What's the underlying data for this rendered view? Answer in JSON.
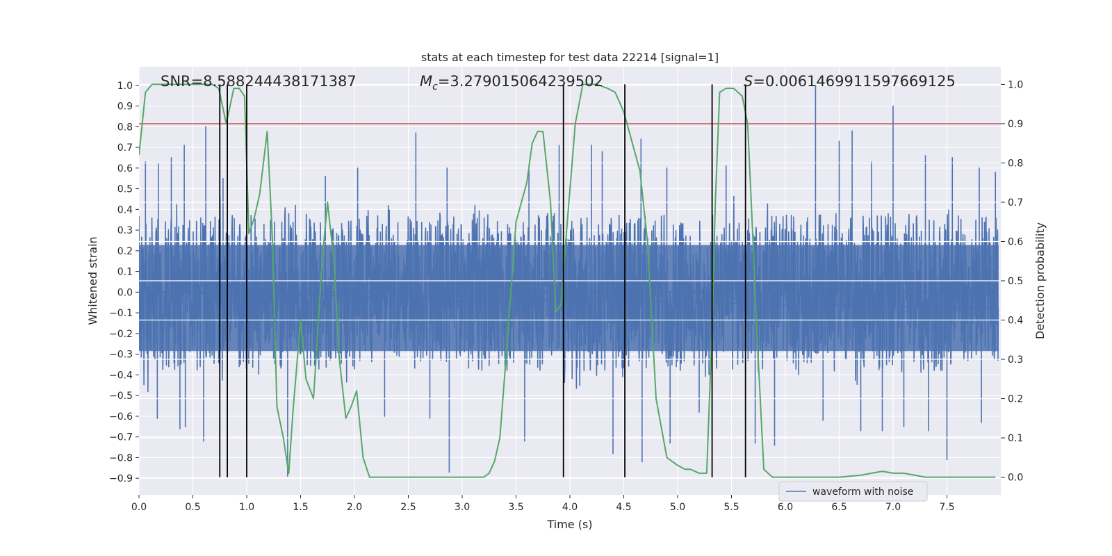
{
  "chart_data": {
    "type": "line",
    "title": "stats at each timestep for test data 22214 [signal=1]",
    "xlabel": "Time (s)",
    "ylabel": "Whitened strain",
    "y2label": "Detection probability",
    "xlim": [
      0.0,
      8.0
    ],
    "ylim": [
      -0.98,
      1.09
    ],
    "y2lim": [
      -0.045,
      1.045
    ],
    "xticks": [
      "0.0",
      "0.5",
      "1.0",
      "1.5",
      "2.0",
      "2.5",
      "3.0",
      "3.5",
      "4.0",
      "4.5",
      "5.0",
      "5.5",
      "6.0",
      "6.5",
      "7.0",
      "7.5"
    ],
    "yticks": [
      "1.0",
      "0.9",
      "0.8",
      "0.7",
      "0.6",
      "0.5",
      "0.4",
      "0.3",
      "0.2",
      "0.1",
      "0.0",
      "−0.1",
      "−0.2",
      "−0.3",
      "−0.4",
      "−0.5",
      "−0.6",
      "−0.7",
      "−0.8",
      "−0.9"
    ],
    "y2ticks": [
      "1.0",
      "0.9",
      "0.8",
      "0.7",
      "0.6",
      "0.5",
      "0.4",
      "0.3",
      "0.2",
      "0.1",
      "0.0"
    ],
    "grid": true,
    "legend": {
      "placement": "lower-right",
      "entries": [
        "waveform with noise"
      ]
    },
    "annotations": {
      "snr": "SNR=8.588244438171387",
      "mc_prefix": "M",
      "mc_sub": "c",
      "mc_value": "=3.279015064239502",
      "s_prefix": "S",
      "s_value": "=0.0061469911597669125"
    },
    "threshold": {
      "value": 0.9,
      "axis": "y2",
      "color": "#c44e52"
    },
    "vertical_lines_x": [
      0.75,
      0.82,
      1.0,
      3.94,
      4.51,
      5.32,
      5.63
    ],
    "series": [
      {
        "name": "waveform with noise",
        "axis": "y",
        "color": "#4c72b0",
        "envelope": {
          "core_amplitude": 0.38,
          "typical_peak": 0.52,
          "notable_spikes": [
            {
              "x": 0.06,
              "y": 0.63
            },
            {
              "x": 0.18,
              "y": 0.62
            },
            {
              "x": 0.17,
              "y": -0.61
            },
            {
              "x": 0.3,
              "y": 0.65
            },
            {
              "x": 0.38,
              "y": -0.66
            },
            {
              "x": 0.42,
              "y": 0.71
            },
            {
              "x": 0.43,
              "y": -0.65
            },
            {
              "x": 0.6,
              "y": -0.72
            },
            {
              "x": 0.62,
              "y": 0.8
            },
            {
              "x": 0.78,
              "y": 0.55
            },
            {
              "x": 1.0,
              "y": -0.69
            },
            {
              "x": 1.38,
              "y": -0.89
            },
            {
              "x": 1.73,
              "y": 0.56
            },
            {
              "x": 2.03,
              "y": 0.6
            },
            {
              "x": 2.28,
              "y": -0.6
            },
            {
              "x": 2.57,
              "y": 0.77
            },
            {
              "x": 2.7,
              "y": -0.61
            },
            {
              "x": 2.86,
              "y": 0.6
            },
            {
              "x": 2.88,
              "y": -0.87
            },
            {
              "x": 3.58,
              "y": -0.72
            },
            {
              "x": 3.62,
              "y": 0.59
            },
            {
              "x": 3.9,
              "y": 0.71
            },
            {
              "x": 4.2,
              "y": 0.71
            },
            {
              "x": 4.3,
              "y": 0.68
            },
            {
              "x": 4.4,
              "y": -0.78
            },
            {
              "x": 4.66,
              "y": 0.74
            },
            {
              "x": 4.67,
              "y": -0.82
            },
            {
              "x": 4.9,
              "y": 0.6
            },
            {
              "x": 4.93,
              "y": -0.73
            },
            {
              "x": 5.2,
              "y": -0.58
            },
            {
              "x": 5.32,
              "y": -0.7
            },
            {
              "x": 5.45,
              "y": 0.61
            },
            {
              "x": 5.72,
              "y": -0.73
            },
            {
              "x": 5.9,
              "y": -0.74
            },
            {
              "x": 6.28,
              "y": 1.0
            },
            {
              "x": 6.35,
              "y": -0.62
            },
            {
              "x": 6.5,
              "y": 0.73
            },
            {
              "x": 6.62,
              "y": 0.78
            },
            {
              "x": 6.7,
              "y": -0.67
            },
            {
              "x": 6.8,
              "y": 0.63
            },
            {
              "x": 6.9,
              "y": -0.67
            },
            {
              "x": 7.0,
              "y": 0.9
            },
            {
              "x": 7.1,
              "y": -0.65
            },
            {
              "x": 7.3,
              "y": 0.66
            },
            {
              "x": 7.33,
              "y": -0.67
            },
            {
              "x": 7.5,
              "y": -0.81
            },
            {
              "x": 7.55,
              "y": 0.65
            },
            {
              "x": 7.8,
              "y": 0.6
            },
            {
              "x": 7.82,
              "y": -0.63
            },
            {
              "x": 7.95,
              "y": 0.58
            }
          ]
        }
      },
      {
        "name": "",
        "axis": "y2",
        "color": "#55a868",
        "x": [
          0.0,
          0.06,
          0.12,
          0.25,
          0.4,
          0.6,
          0.68,
          0.74,
          0.81,
          0.88,
          0.93,
          0.98,
          1.02,
          1.07,
          1.12,
          1.19,
          1.24,
          1.28,
          1.34,
          1.39,
          1.43,
          1.5,
          1.55,
          1.62,
          1.7,
          1.75,
          1.81,
          1.86,
          1.92,
          1.97,
          2.02,
          2.08,
          2.14,
          2.2,
          2.3,
          2.4,
          2.6,
          2.8,
          3.0,
          3.1,
          3.2,
          3.25,
          3.3,
          3.35,
          3.42,
          3.5,
          3.6,
          3.65,
          3.7,
          3.75,
          3.82,
          3.87,
          3.92,
          3.97,
          4.05,
          4.12,
          4.25,
          4.35,
          4.42,
          4.5,
          4.58,
          4.65,
          4.72,
          4.8,
          4.9,
          5.0,
          5.07,
          5.12,
          5.2,
          5.27,
          5.32,
          5.35,
          5.39,
          5.45,
          5.52,
          5.6,
          5.65,
          5.7,
          5.73,
          5.8,
          5.88,
          6.0,
          6.2,
          6.5,
          6.7,
          6.8,
          6.9,
          7.0,
          7.1,
          7.2,
          7.3,
          7.5,
          7.7,
          7.95
        ],
        "y": [
          0.82,
          0.98,
          1.0,
          1.0,
          1.0,
          1.0,
          1.0,
          0.99,
          0.9,
          0.99,
          0.99,
          0.97,
          0.62,
          0.66,
          0.72,
          0.88,
          0.6,
          0.18,
          0.1,
          0.01,
          0.17,
          0.4,
          0.25,
          0.2,
          0.55,
          0.7,
          0.55,
          0.3,
          0.15,
          0.18,
          0.22,
          0.05,
          0.0,
          0.0,
          0.0,
          0.0,
          0.0,
          0.0,
          0.0,
          0.0,
          0.0,
          0.01,
          0.04,
          0.1,
          0.35,
          0.65,
          0.75,
          0.85,
          0.88,
          0.88,
          0.7,
          0.42,
          0.44,
          0.63,
          0.9,
          1.0,
          1.0,
          0.99,
          0.98,
          0.93,
          0.85,
          0.78,
          0.6,
          0.2,
          0.05,
          0.03,
          0.02,
          0.02,
          0.01,
          0.01,
          0.38,
          0.7,
          0.98,
          0.99,
          0.99,
          0.97,
          0.9,
          0.6,
          0.4,
          0.02,
          0.0,
          0.0,
          0.0,
          0.0,
          0.005,
          0.01,
          0.015,
          0.01,
          0.01,
          0.005,
          0.0,
          0.0,
          0.0,
          0.0
        ]
      }
    ]
  }
}
